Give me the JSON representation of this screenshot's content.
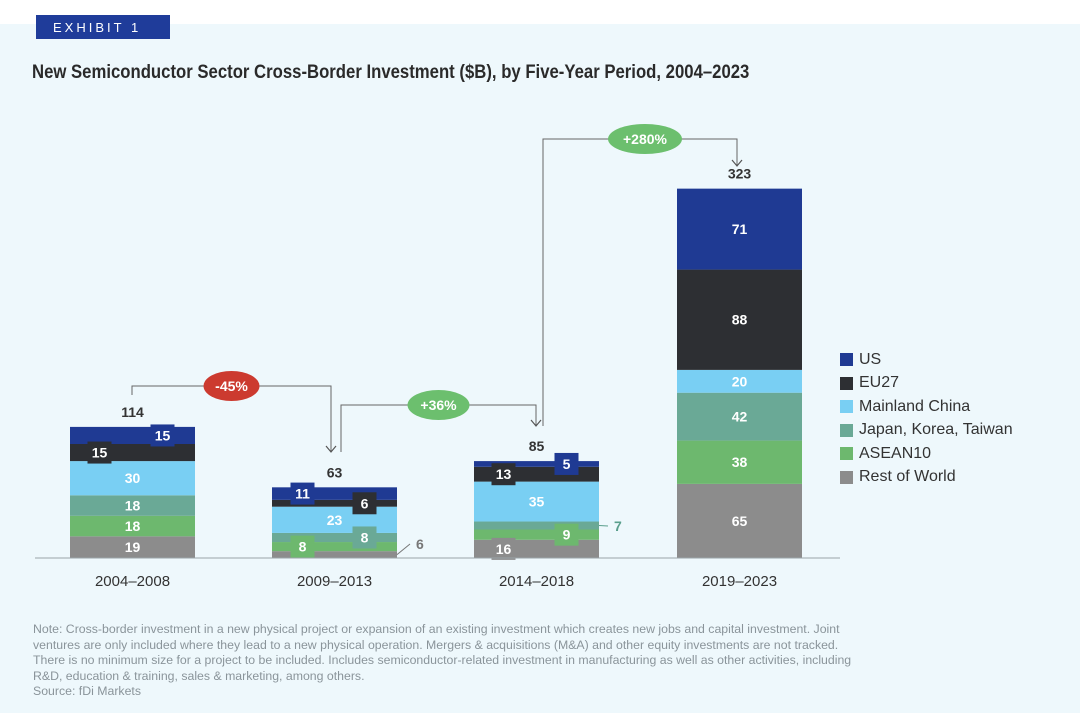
{
  "exhibit_label": "EXHIBIT 1",
  "title": "New Semiconductor Sector Cross-Border Investment ($B), by Five-Year Period, 2004–2023",
  "chart_data": {
    "type": "bar",
    "stacked": true,
    "categories": [
      "2004–2008",
      "2009–2013",
      "2014–2018",
      "2019–2023"
    ],
    "series": [
      {
        "name": "Rest of World",
        "values": [
          19,
          6,
          16,
          65
        ],
        "color": "#8c8c8c"
      },
      {
        "name": "ASEAN10",
        "values": [
          18,
          8,
          9,
          38
        ],
        "color": "#6db86e"
      },
      {
        "name": "Japan, Korea, Taiwan",
        "values": [
          18,
          8,
          7,
          42
        ],
        "color": "#6aa996"
      },
      {
        "name": "Mainland China",
        "values": [
          30,
          23,
          35,
          20
        ],
        "color": "#79cff3"
      },
      {
        "name": "EU27",
        "values": [
          15,
          6,
          13,
          88
        ],
        "color": "#2d2f33"
      },
      {
        "name": "US",
        "values": [
          15,
          11,
          5,
          71
        ],
        "color": "#1f3a93"
      }
    ],
    "totals": [
      "114",
      "63",
      "85",
      "323"
    ],
    "legend_order": [
      "US",
      "EU27",
      "Mainland China",
      "Japan, Korea, Taiwan",
      "ASEAN10",
      "Rest of World"
    ],
    "legend_position": "right",
    "grid": false,
    "ylim": [
      0,
      323
    ],
    "annotations": [
      {
        "text": "-45%",
        "from": "2004–2008",
        "to": "2009–2013",
        "color": "#cc3a2f"
      },
      {
        "text": "+36%",
        "from": "2009–2013",
        "to": "2014–2018",
        "color": "#6cbf6e"
      },
      {
        "text": "+280%",
        "from": "2014–2018",
        "to": "2019–2023",
        "color": "#6cbf6e"
      }
    ]
  },
  "note_lines": [
    "Note: Cross-border investment in a new physical project or expansion of an existing investment which creates new jobs and capital investment. Joint",
    "ventures are only included where they lead to a new physical operation. Mergers & acquisitions (M&A) and other equity investments are not tracked.",
    "There is no minimum size for a project to be included. Includes semiconductor-related investment in manufacturing as well as other activities, including",
    "R&D, education & training, sales & marketing, among others.",
    "Source: fDi Markets"
  ]
}
